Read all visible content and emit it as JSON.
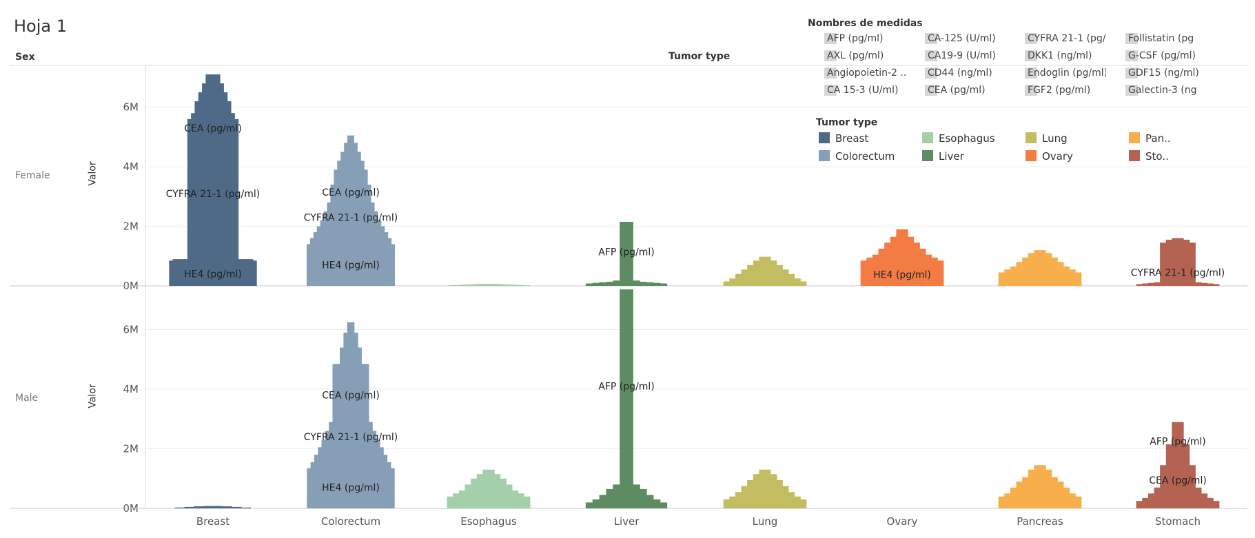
{
  "sheet_title": "Hoja 1",
  "header": {
    "rows_label": "Sex",
    "cols_label": "Tumor type"
  },
  "rows": [
    "Female",
    "Male"
  ],
  "axis_title": "Valor",
  "legend_measures": {
    "title": "Nombres de medidas",
    "items": [
      "AFP (pg/ml)",
      "CA-125 (U/ml)",
      "CYFRA 21-1 (pg/..",
      "Follistatin (pg",
      "AXL (pg/ml)",
      "CA19-9 (U/ml)",
      "DKK1 (ng/ml)",
      "G-CSF (pg/ml)",
      "Angiopoietin-2 ..",
      "CD44 (ng/ml)",
      "Endoglin (pg/ml)",
      "GDF15 (ng/ml)",
      "CA 15-3 (U/ml)",
      "CEA (pg/ml)",
      "FGF2 (pg/ml)",
      "Galectin-3 (ng"
    ]
  },
  "legend_tumor": {
    "title": "Tumor type",
    "items": [
      {
        "label": "Breast",
        "color": "#4e6a87"
      },
      {
        "label": "Esophagus",
        "color": "#a3cfaa"
      },
      {
        "label": "Lung",
        "color": "#c2bd60"
      },
      {
        "label": "Pan..",
        "color": "#f8ae4a"
      },
      {
        "label": "Colorectum",
        "color": "#869fb6"
      },
      {
        "label": "Liver",
        "color": "#5e8c62"
      },
      {
        "label": "Ovary",
        "color": "#f37c45"
      },
      {
        "label": "Sto..",
        "color": "#b46252"
      }
    ]
  },
  "chart_data": {
    "type": "area",
    "categories": [
      "Breast",
      "Colorectum",
      "Esophagus",
      "Liver",
      "Lung",
      "Ovary",
      "Pancreas",
      "Stomach"
    ],
    "colors": {
      "Breast": "#4e6a87",
      "Colorectum": "#869fb6",
      "Esophagus": "#a3cfaa",
      "Liver": "#5e8c62",
      "Lung": "#c2bd60",
      "Ovary": "#f37c45",
      "Pancreas": "#f8ae4a",
      "Stomach": "#b46252"
    },
    "ylim": [
      0,
      7400000
    ],
    "yticks": [
      0,
      2000000,
      4000000,
      6000000
    ],
    "ytick_labels": [
      "0M",
      "2M",
      "4M",
      "6M"
    ],
    "panels": [
      {
        "row": "Female",
        "profiles": {
          "Breast": [
            0,
            0.85,
            0.9,
            0.9,
            0.9,
            0.9,
            5.6,
            5.8,
            6.2,
            6.5,
            6.8,
            7.1,
            7.1,
            7.1,
            7.1,
            6.8,
            6.5,
            6.2,
            5.8,
            5.6,
            0.9,
            0.9,
            0.9,
            0.9,
            0.85,
            0
          ],
          "Colorectum": [
            0,
            1.4,
            1.6,
            1.8,
            2.0,
            2.2,
            2.5,
            2.8,
            3.4,
            3.9,
            4.2,
            4.5,
            4.8,
            5.05,
            5.05,
            4.8,
            4.5,
            4.2,
            3.9,
            3.4,
            2.8,
            2.5,
            2.2,
            2.0,
            1.8,
            1.6,
            1.4,
            0
          ],
          "Esophagus": [
            0,
            0.02,
            0.03,
            0.04,
            0.05,
            0.06,
            0.07,
            0.07,
            0.07,
            0.06,
            0.05,
            0.04,
            0.03,
            0.02,
            0
          ],
          "Liver": [
            0,
            0.08,
            0.1,
            0.12,
            0.14,
            0.18,
            2.15,
            2.15,
            0.18,
            0.14,
            0.12,
            0.1,
            0.08,
            0
          ],
          "Lung": [
            0,
            0.15,
            0.25,
            0.4,
            0.55,
            0.7,
            0.85,
            0.98,
            0.98,
            0.85,
            0.7,
            0.55,
            0.4,
            0.25,
            0.15,
            0
          ],
          "Ovary": [
            0,
            0.85,
            0.95,
            1.05,
            1.25,
            1.45,
            1.65,
            1.9,
            1.9,
            1.65,
            1.45,
            1.25,
            1.05,
            0.95,
            0.85,
            0
          ],
          "Pancreas": [
            0,
            0.45,
            0.55,
            0.65,
            0.8,
            0.95,
            1.1,
            1.2,
            1.2,
            1.1,
            0.95,
            0.8,
            0.65,
            0.55,
            0.45,
            0
          ],
          "Stomach": [
            0,
            0.06,
            0.08,
            0.1,
            0.12,
            1.45,
            1.55,
            1.6,
            1.6,
            1.55,
            1.45,
            0.12,
            0.1,
            0.08,
            0.06,
            0
          ]
        },
        "labels": [
          {
            "cat": "Breast",
            "text": "CEA (pg/ml)",
            "y": 5.3
          },
          {
            "cat": "Breast",
            "text": "CYFRA 21-1 (pg/ml)",
            "y": 3.1
          },
          {
            "cat": "Breast",
            "text": "HE4 (pg/ml)",
            "y": 0.4
          },
          {
            "cat": "Colorectum",
            "text": "CEA (pg/ml)",
            "y": 3.15
          },
          {
            "cat": "Colorectum",
            "text": "CYFRA 21-1 (pg/ml)",
            "y": 2.3
          },
          {
            "cat": "Colorectum",
            "text": "HE4 (pg/ml)",
            "y": 0.7
          },
          {
            "cat": "Liver",
            "text": "AFP (pg/ml)",
            "y": 1.15
          },
          {
            "cat": "Ovary",
            "text": "HE4 (pg/ml)",
            "y": 0.38
          },
          {
            "cat": "Stomach",
            "text": "CYFRA 21-1 (pg/ml)",
            "y": 0.45
          }
        ]
      },
      {
        "row": "Male",
        "profiles": {
          "Breast": [
            0,
            0.03,
            0.05,
            0.07,
            0.08,
            0.08,
            0.07,
            0.05,
            0.03,
            0
          ],
          "Colorectum": [
            0,
            1.35,
            1.55,
            1.8,
            2.05,
            2.3,
            2.6,
            2.9,
            4.85,
            4.85,
            5.4,
            5.9,
            6.25,
            6.25,
            5.9,
            5.4,
            4.85,
            4.85,
            2.9,
            2.6,
            2.3,
            2.05,
            1.8,
            1.55,
            1.35,
            0
          ],
          "Esophagus": [
            0,
            0.4,
            0.5,
            0.6,
            0.8,
            1.0,
            1.15,
            1.3,
            1.3,
            1.15,
            1.0,
            0.8,
            0.6,
            0.5,
            0.4,
            0
          ],
          "Liver": [
            0,
            0.2,
            0.3,
            0.45,
            0.65,
            0.8,
            7.35,
            7.35,
            0.8,
            0.65,
            0.45,
            0.3,
            0.2,
            0
          ],
          "Lung": [
            0,
            0.3,
            0.4,
            0.55,
            0.75,
            0.95,
            1.15,
            1.3,
            1.3,
            1.15,
            0.95,
            0.75,
            0.55,
            0.4,
            0.3,
            0
          ],
          "Ovary": [],
          "Pancreas": [
            0,
            0.4,
            0.5,
            0.7,
            0.9,
            1.05,
            1.3,
            1.45,
            1.45,
            1.3,
            1.05,
            0.9,
            0.7,
            0.5,
            0.4,
            0
          ],
          "Stomach": [
            0,
            0.25,
            0.35,
            0.5,
            0.7,
            1.45,
            2.15,
            2.9,
            2.9,
            2.15,
            1.45,
            0.7,
            0.5,
            0.35,
            0.25,
            0
          ]
        },
        "labels": [
          {
            "cat": "Colorectum",
            "text": "CEA (pg/ml)",
            "y": 3.8
          },
          {
            "cat": "Colorectum",
            "text": "CYFRA 21-1 (pg/ml)",
            "y": 2.4
          },
          {
            "cat": "Colorectum",
            "text": "HE4 (pg/ml)",
            "y": 0.7
          },
          {
            "cat": "Liver",
            "text": "AFP (pg/ml)",
            "y": 4.1
          },
          {
            "cat": "Stomach",
            "text": "AFP (pg/ml)",
            "y": 2.25
          },
          {
            "cat": "Stomach",
            "text": "CEA (pg/ml)",
            "y": 0.95
          }
        ]
      }
    ]
  }
}
